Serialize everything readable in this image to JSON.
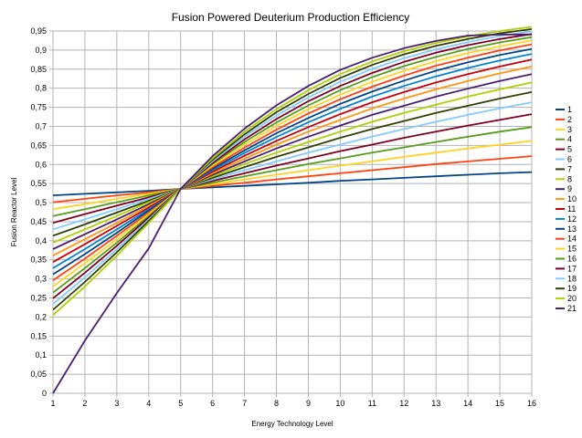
{
  "chart_data": {
    "type": "line",
    "title": "Fusion Powered Deuterium Production Efficiency",
    "xlabel": "Energy Technology Level",
    "ylabel": "Fusion Reactor Level",
    "xlim": [
      1,
      16
    ],
    "ylim": [
      0,
      0.95
    ],
    "y_tick_step": 0.05,
    "grid": true,
    "legend_position": "right",
    "x": [
      1,
      2,
      3,
      4,
      5,
      6,
      7,
      8,
      9,
      10,
      11,
      12,
      13,
      14,
      15,
      16
    ],
    "x_tick_labels": [
      "1",
      "2",
      "3",
      "4",
      "5",
      "6",
      "7",
      "8",
      "9",
      "10",
      "11",
      "12",
      "13",
      "14",
      "15",
      "16"
    ],
    "y_tick_labels": [
      "0",
      "0,05",
      "0,1",
      "0,15",
      "0,2",
      "0,25",
      "0,3",
      "0,35",
      "0,4",
      "0,45",
      "0,5",
      "0,55",
      "0,6",
      "0,65",
      "0,7",
      "0,75",
      "0,8",
      "0,85",
      "0,9",
      "0,95"
    ],
    "series": [
      {
        "name": "1",
        "color": "#004586",
        "values": [
          0.519,
          0.523,
          0.527,
          0.531,
          0.536,
          0.54,
          0.544,
          0.548,
          0.552,
          0.557,
          0.561,
          0.565,
          0.569,
          0.573,
          0.577,
          0.58
        ]
      },
      {
        "name": "2",
        "color": "#ff420e",
        "values": [
          0.501,
          0.51,
          0.519,
          0.527,
          0.536,
          0.544,
          0.552,
          0.561,
          0.569,
          0.577,
          0.585,
          0.593,
          0.601,
          0.608,
          0.615,
          0.622
        ]
      },
      {
        "name": "3",
        "color": "#ffd320",
        "values": [
          0.483,
          0.496,
          0.51,
          0.523,
          0.536,
          0.548,
          0.561,
          0.573,
          0.585,
          0.597,
          0.608,
          0.62,
          0.631,
          0.642,
          0.652,
          0.662
        ]
      },
      {
        "name": "4",
        "color": "#579d1c",
        "values": [
          0.465,
          0.483,
          0.501,
          0.519,
          0.536,
          0.552,
          0.569,
          0.585,
          0.601,
          0.616,
          0.631,
          0.645,
          0.659,
          0.673,
          0.686,
          0.698
        ]
      },
      {
        "name": "5",
        "color": "#7e0021",
        "values": [
          0.447,
          0.47,
          0.492,
          0.514,
          0.536,
          0.557,
          0.577,
          0.597,
          0.616,
          0.635,
          0.652,
          0.67,
          0.686,
          0.702,
          0.717,
          0.732
        ]
      },
      {
        "name": "6",
        "color": "#83caff",
        "values": [
          0.43,
          0.456,
          0.483,
          0.51,
          0.536,
          0.561,
          0.585,
          0.608,
          0.631,
          0.652,
          0.673,
          0.693,
          0.712,
          0.73,
          0.747,
          0.763
        ]
      },
      {
        "name": "7",
        "color": "#314004",
        "values": [
          0.413,
          0.443,
          0.474,
          0.505,
          0.536,
          0.565,
          0.593,
          0.62,
          0.645,
          0.67,
          0.693,
          0.714,
          0.735,
          0.754,
          0.773,
          0.79
        ]
      },
      {
        "name": "8",
        "color": "#aecf00",
        "values": [
          0.395,
          0.43,
          0.465,
          0.501,
          0.536,
          0.569,
          0.601,
          0.631,
          0.659,
          0.686,
          0.712,
          0.735,
          0.757,
          0.778,
          0.797,
          0.815
        ]
      },
      {
        "name": "9",
        "color": "#4b1f6f",
        "values": [
          0.378,
          0.417,
          0.456,
          0.496,
          0.536,
          0.573,
          0.608,
          0.642,
          0.673,
          0.702,
          0.73,
          0.754,
          0.778,
          0.799,
          0.819,
          0.837
        ]
      },
      {
        "name": "10",
        "color": "#ff950e",
        "values": [
          0.361,
          0.404,
          0.447,
          0.492,
          0.536,
          0.577,
          0.615,
          0.652,
          0.686,
          0.717,
          0.747,
          0.773,
          0.797,
          0.819,
          0.839,
          0.857
        ]
      },
      {
        "name": "11",
        "color": "#c5000b",
        "values": [
          0.344,
          0.391,
          0.439,
          0.487,
          0.536,
          0.581,
          0.623,
          0.662,
          0.698,
          0.732,
          0.763,
          0.79,
          0.815,
          0.837,
          0.857,
          0.875
        ]
      },
      {
        "name": "12",
        "color": "#0084d1",
        "values": [
          0.328,
          0.378,
          0.43,
          0.483,
          0.536,
          0.585,
          0.63,
          0.672,
          0.711,
          0.746,
          0.778,
          0.806,
          0.831,
          0.853,
          0.873,
          0.89
        ]
      },
      {
        "name": "13",
        "color": "#004586",
        "values": [
          0.312,
          0.365,
          0.421,
          0.479,
          0.536,
          0.589,
          0.637,
          0.682,
          0.722,
          0.759,
          0.791,
          0.82,
          0.846,
          0.868,
          0.887,
          0.903
        ]
      },
      {
        "name": "14",
        "color": "#ff420e",
        "values": [
          0.296,
          0.353,
          0.413,
          0.474,
          0.536,
          0.593,
          0.644,
          0.691,
          0.734,
          0.771,
          0.804,
          0.833,
          0.859,
          0.88,
          0.899,
          0.915
        ]
      },
      {
        "name": "15",
        "color": "#ffd320",
        "values": [
          0.28,
          0.341,
          0.404,
          0.47,
          0.536,
          0.597,
          0.652,
          0.701,
          0.745,
          0.783,
          0.817,
          0.846,
          0.871,
          0.892,
          0.91,
          0.925
        ]
      },
      {
        "name": "16",
        "color": "#579d1c",
        "values": [
          0.264,
          0.328,
          0.395,
          0.465,
          0.536,
          0.601,
          0.659,
          0.71,
          0.755,
          0.795,
          0.829,
          0.858,
          0.882,
          0.903,
          0.92,
          0.934
        ]
      },
      {
        "name": "17",
        "color": "#7e0021",
        "values": [
          0.249,
          0.316,
          0.387,
          0.461,
          0.536,
          0.604,
          0.666,
          0.719,
          0.766,
          0.806,
          0.84,
          0.869,
          0.893,
          0.913,
          0.929,
          0.942
        ]
      },
      {
        "name": "18",
        "color": "#83caff",
        "values": [
          0.234,
          0.304,
          0.378,
          0.456,
          0.536,
          0.608,
          0.673,
          0.728,
          0.776,
          0.817,
          0.851,
          0.879,
          0.902,
          0.921,
          0.937,
          0.949
        ]
      },
      {
        "name": "19",
        "color": "#314004",
        "values": [
          0.219,
          0.292,
          0.37,
          0.452,
          0.536,
          0.612,
          0.679,
          0.737,
          0.785,
          0.827,
          0.861,
          0.889,
          0.911,
          0.929,
          0.944,
          0.955
        ]
      },
      {
        "name": "20",
        "color": "#aecf00",
        "values": [
          0.205,
          0.28,
          0.361,
          0.447,
          0.536,
          0.616,
          0.686,
          0.745,
          0.795,
          0.837,
          0.87,
          0.897,
          0.919,
          0.936,
          0.95,
          0.961
        ]
      },
      {
        "name": "21",
        "color": "#4b1f6f",
        "values": [
          0.0,
          0.138,
          0.263,
          0.38,
          0.536,
          0.622,
          0.694,
          0.755,
          0.806,
          0.848,
          0.88,
          0.905,
          0.924,
          0.938,
          0.941,
          0.941
        ]
      }
    ]
  }
}
